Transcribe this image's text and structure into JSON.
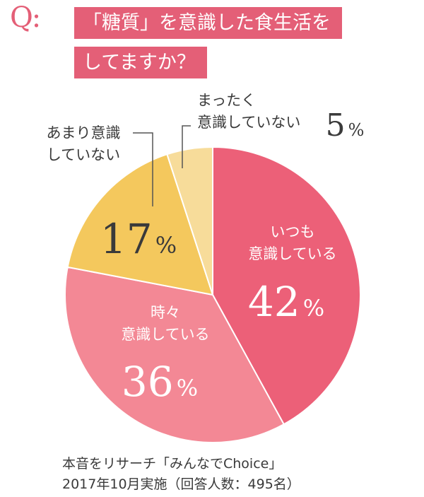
{
  "question": {
    "mark": "Q:",
    "line1": "「糖質」を意識した食生活を",
    "line2": "してますか？"
  },
  "colors": {
    "accent": "#e45f77",
    "always": "#ec6078",
    "sometimes": "#f38895",
    "not_much": "#f4c85d",
    "never": "#f7dc9a",
    "leader": "#555555"
  },
  "chart_data": {
    "type": "pie",
    "title": "「糖質」を意識した食生活をしてますか？",
    "slices": [
      {
        "key": "always",
        "label_lines": [
          "いつも",
          "意識している"
        ],
        "value": 42,
        "value_text": "42",
        "unit": "%"
      },
      {
        "key": "sometimes",
        "label_lines": [
          "時々",
          "意識している"
        ],
        "value": 36,
        "value_text": "36",
        "unit": "%"
      },
      {
        "key": "not_much",
        "label_lines": [
          "あまり意識",
          "していない"
        ],
        "value": 17,
        "value_text": "17",
        "unit": "%"
      },
      {
        "key": "never",
        "label_lines": [
          "まったく",
          "意識していない"
        ],
        "value": 5,
        "value_text": "5",
        "unit": "%"
      }
    ]
  },
  "source": {
    "line1": "本音をリサーチ「みんなでChoice」",
    "line2": "2017年10月実施（回答人数：495名）"
  }
}
